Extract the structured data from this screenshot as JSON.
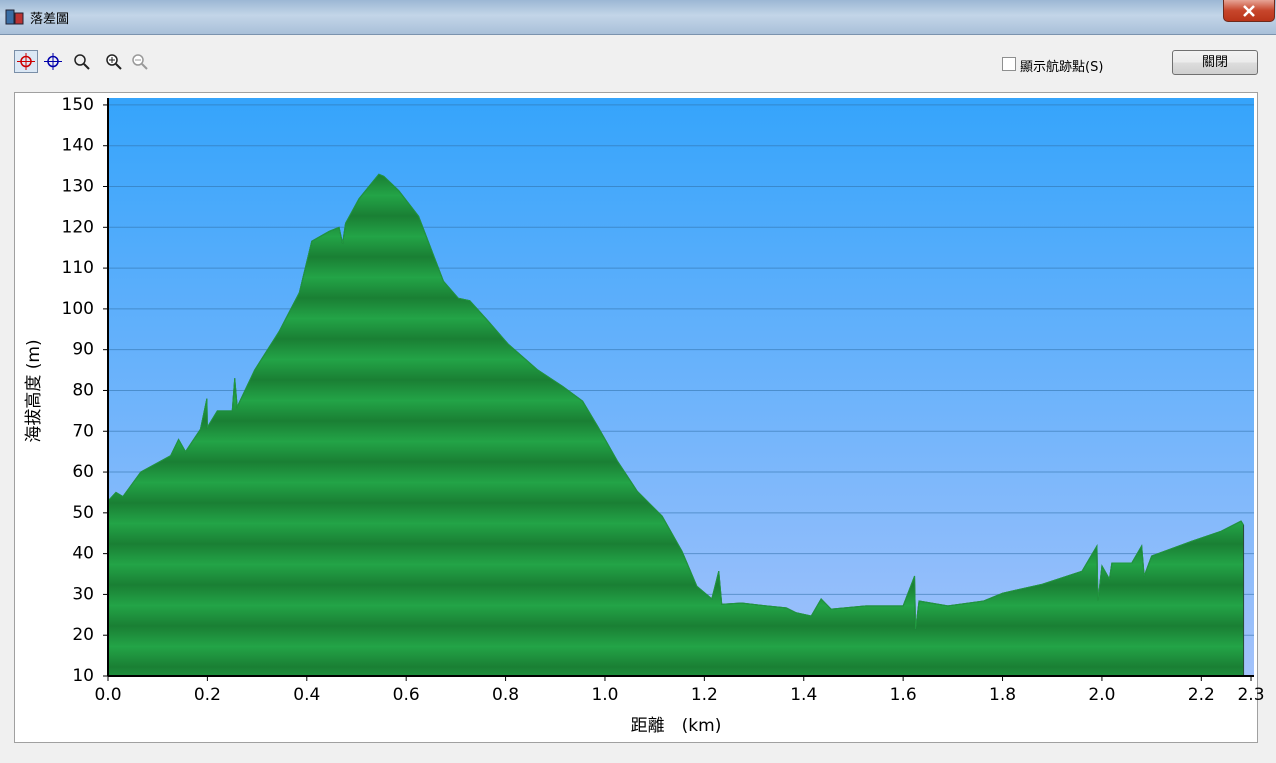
{
  "window": {
    "title": "落差圖"
  },
  "toolbar": {
    "checkbox_label": "顯示航跡點(S)",
    "close_button": "關閉"
  },
  "chart_data": {
    "type": "area",
    "xlabel": "距離　(km)",
    "ylabel": "海拔高度 (m)",
    "x": [
      0,
      0.016,
      0.03,
      0.066,
      0.126,
      0.142,
      0.156,
      0.186,
      0.199,
      0.2,
      0.22,
      0.25,
      0.255,
      0.26,
      0.295,
      0.345,
      0.385,
      0.41,
      0.445,
      0.465,
      0.472,
      0.478,
      0.505,
      0.545,
      0.555,
      0.585,
      0.625,
      0.675,
      0.705,
      0.728,
      0.765,
      0.805,
      0.865,
      0.915,
      0.955,
      0.985,
      1.025,
      1.065,
      1.115,
      1.155,
      1.185,
      1.215,
      1.229,
      1.235,
      1.275,
      1.325,
      1.365,
      1.385,
      1.415,
      1.435,
      1.455,
      1.525,
      1.6,
      1.623,
      1.625,
      1.632,
      1.69,
      1.762,
      1.8,
      1.88,
      1.96,
      1.99,
      1.992,
      2.0,
      2.015,
      2.02,
      2.06,
      2.08,
      2.085,
      2.1,
      2.18,
      2.24,
      2.28,
      2.285
    ],
    "values": [
      52.9,
      55,
      54,
      60,
      64,
      68,
      65,
      70.5,
      78,
      71,
      75,
      75,
      83,
      76,
      85,
      94.6,
      104,
      116.6,
      119,
      120,
      116,
      121,
      127,
      133,
      132.5,
      129,
      122.7,
      106.8,
      102.6,
      102,
      97,
      91.4,
      85,
      81,
      77.4,
      71.3,
      62.7,
      55.3,
      49.2,
      40.6,
      32,
      28.9,
      35.7,
      27.6,
      27.9,
      27.2,
      26.7,
      25.5,
      24.7,
      28.9,
      26.4,
      27.2,
      27.2,
      34.5,
      21.5,
      28.4,
      27.2,
      28.4,
      30.3,
      32.5,
      35.7,
      41.9,
      28.4,
      37,
      33.8,
      37.7,
      37.7,
      41.9,
      34.5,
      39.4,
      43,
      45.5,
      48,
      47
    ],
    "color": "#1f9a3e",
    "xlim": [
      0,
      2.306
    ],
    "ylim": [
      10,
      151.7
    ],
    "xticks": [
      {
        "value": 0,
        "label": "0.0"
      },
      0.2,
      0.4,
      0.6,
      0.8,
      {
        "value": 1,
        "label": "1.0"
      },
      1.2,
      1.4,
      1.6,
      1.8,
      {
        "value": 2,
        "label": "2.0"
      },
      2.2,
      2.3
    ],
    "yticks": [
      10,
      20,
      30,
      40,
      50,
      60,
      70,
      80,
      90,
      100,
      110,
      120,
      130,
      140,
      150
    ],
    "grid": true
  }
}
